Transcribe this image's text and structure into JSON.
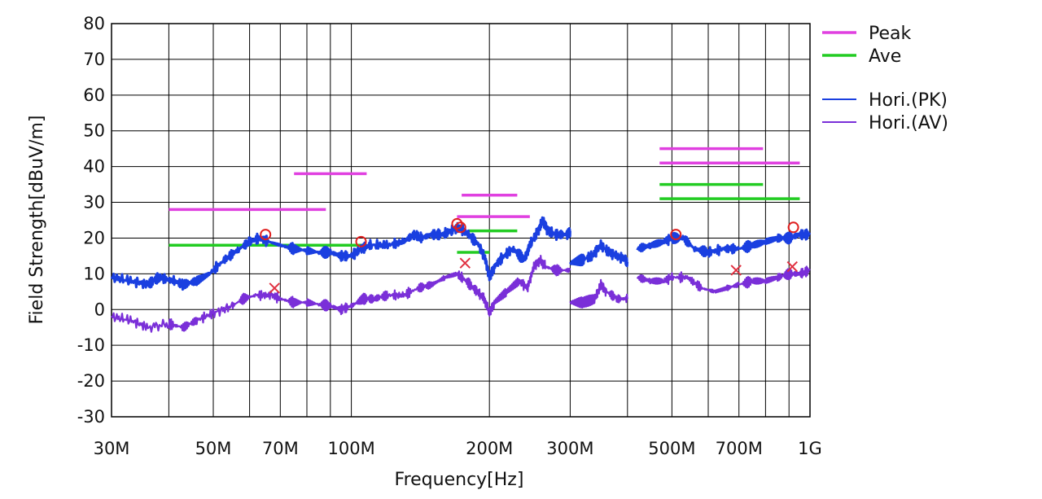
{
  "chart_data": {
    "type": "line",
    "xlabel": "Frequency[Hz]",
    "ylabel": "Field Strength[dBuV/m]",
    "x_scale": "log",
    "xlim": [
      30000000,
      1000000000
    ],
    "ylim": [
      -30,
      80
    ],
    "grid": true,
    "legend_position": "right",
    "y_ticks": [
      80,
      70,
      60,
      50,
      40,
      30,
      20,
      10,
      0,
      -10,
      -20,
      -30
    ],
    "x_ticks": [
      {
        "value": 30000000,
        "label": "30M"
      },
      {
        "value": 50000000,
        "label": "50M"
      },
      {
        "value": 70000000,
        "label": "70M"
      },
      {
        "value": 100000000,
        "label": "100M"
      },
      {
        "value": 200000000,
        "label": "200M"
      },
      {
        "value": 300000000,
        "label": "300M"
      },
      {
        "value": 500000000,
        "label": "500M"
      },
      {
        "value": 700000000,
        "label": "700M"
      },
      {
        "value": 1000000000,
        "label": "1G"
      }
    ],
    "legend": [
      {
        "label": "Peak",
        "color": "#e040e0",
        "style": "thick"
      },
      {
        "label": "Ave",
        "color": "#22cc22",
        "style": "thick"
      },
      {
        "label": "Hori.(PK)",
        "color": "#1a3fe0",
        "style": "thin"
      },
      {
        "label": "Hori.(AV)",
        "color": "#7a2fd8",
        "style": "thin"
      }
    ],
    "limit_segments": {
      "Peak": [
        {
          "x1": 40000000,
          "x2": 88000000,
          "y": 28
        },
        {
          "x1": 75000000,
          "x2": 108000000,
          "y": 38
        },
        {
          "x1": 174000000,
          "x2": 230000000,
          "y": 32
        },
        {
          "x1": 170000000,
          "x2": 245000000,
          "y": 26
        },
        {
          "x1": 470000000,
          "x2": 790000000,
          "y": 45
        },
        {
          "x1": 470000000,
          "x2": 950000000,
          "y": 41
        }
      ],
      "Ave": [
        {
          "x1": 40000000,
          "x2": 108000000,
          "y": 18
        },
        {
          "x1": 180000000,
          "x2": 230000000,
          "y": 22
        },
        {
          "x1": 170000000,
          "x2": 200000000,
          "y": 16
        },
        {
          "x1": 470000000,
          "x2": 790000000,
          "y": 35
        },
        {
          "x1": 470000000,
          "x2": 950000000,
          "y": 31
        }
      ]
    },
    "series": [
      {
        "name": "Hori.(PK)",
        "color": "#1a3fe0",
        "segments": [
          [
            [
              30000000,
              9
            ],
            [
              33000000,
              8
            ],
            [
              36000000,
              7
            ],
            [
              38000000,
              9
            ],
            [
              41000000,
              8
            ],
            [
              43000000,
              7
            ],
            [
              46000000,
              8
            ],
            [
              49000000,
              10
            ],
            [
              53000000,
              14
            ],
            [
              57000000,
              17
            ],
            [
              60000000,
              19
            ],
            [
              63000000,
              20
            ],
            [
              66000000,
              19
            ],
            [
              70000000,
              18
            ],
            [
              75000000,
              17
            ],
            [
              80000000,
              16.5
            ],
            [
              85000000,
              16
            ],
            [
              90000000,
              16
            ],
            [
              95000000,
              15
            ],
            [
              100000000,
              15
            ],
            [
              105000000,
              17
            ],
            [
              110000000,
              18
            ],
            [
              120000000,
              18
            ],
            [
              130000000,
              19
            ],
            [
              137000000,
              21
            ],
            [
              142000000,
              20
            ],
            [
              150000000,
              21
            ],
            [
              158000000,
              21
            ],
            [
              165000000,
              22
            ],
            [
              172000000,
              23
            ],
            [
              180000000,
              21
            ],
            [
              190000000,
              18
            ],
            [
              196000000,
              14
            ],
            [
              200000000,
              9
            ],
            [
              205000000,
              12
            ],
            [
              215000000,
              15
            ],
            [
              225000000,
              17
            ],
            [
              238000000,
              14
            ],
            [
              245000000,
              18
            ],
            [
              255000000,
              22
            ],
            [
              262000000,
              25
            ],
            [
              268000000,
              22
            ],
            [
              280000000,
              21
            ],
            [
              295000000,
              21
            ],
            [
              300000000,
              22
            ]
          ],
          [
            [
              300000000,
              13
            ],
            [
              320000000,
              14
            ],
            [
              335000000,
              15
            ],
            [
              350000000,
              18
            ],
            [
              365000000,
              16
            ],
            [
              380000000,
              15
            ],
            [
              395000000,
              14
            ],
            [
              400000000,
              13
            ]
          ],
          [
            [
              420000000,
              17
            ],
            [
              450000000,
              18
            ],
            [
              480000000,
              19
            ],
            [
              500000000,
              20
            ],
            [
              530000000,
              20
            ],
            [
              560000000,
              17
            ],
            [
              600000000,
              16
            ],
            [
              650000000,
              17
            ],
            [
              700000000,
              17
            ],
            [
              750000000,
              18
            ],
            [
              800000000,
              19
            ],
            [
              850000000,
              20
            ],
            [
              900000000,
              20
            ],
            [
              950000000,
              21
            ],
            [
              1000000000,
              21
            ]
          ]
        ]
      },
      {
        "name": "Hori.(AV)",
        "color": "#7a2fd8",
        "segments": [
          [
            [
              30000000,
              -2
            ],
            [
              33000000,
              -3
            ],
            [
              36000000,
              -5
            ],
            [
              40000000,
              -4
            ],
            [
              43000000,
              -5
            ],
            [
              46000000,
              -3
            ],
            [
              50000000,
              -1
            ],
            [
              55000000,
              1
            ],
            [
              58000000,
              3
            ],
            [
              62000000,
              4
            ],
            [
              67000000,
              4
            ],
            [
              70000000,
              3
            ],
            [
              75000000,
              2
            ],
            [
              80000000,
              2
            ],
            [
              85000000,
              1.5
            ],
            [
              90000000,
              1
            ],
            [
              95000000,
              0
            ],
            [
              100000000,
              1
            ],
            [
              106000000,
              3
            ],
            [
              112000000,
              3
            ],
            [
              120000000,
              4
            ],
            [
              130000000,
              4
            ],
            [
              140000000,
              6
            ],
            [
              150000000,
              7
            ],
            [
              160000000,
              9
            ],
            [
              170000000,
              10
            ],
            [
              178000000,
              8
            ],
            [
              188000000,
              5
            ],
            [
              195000000,
              3
            ],
            [
              200000000,
              -1
            ],
            [
              205000000,
              2
            ],
            [
              218000000,
              5
            ],
            [
              232000000,
              8
            ],
            [
              242000000,
              6
            ],
            [
              250000000,
              12
            ],
            [
              258000000,
              14
            ],
            [
              265000000,
              12
            ],
            [
              280000000,
              11
            ],
            [
              300000000,
              11
            ]
          ],
          [
            [
              300000000,
              2
            ],
            [
              320000000,
              2
            ],
            [
              340000000,
              3
            ],
            [
              350000000,
              7
            ],
            [
              360000000,
              5
            ],
            [
              380000000,
              3
            ],
            [
              400000000,
              3
            ]
          ],
          [
            [
              420000000,
              9
            ],
            [
              450000000,
              8
            ],
            [
              480000000,
              8
            ],
            [
              500000000,
              9
            ],
            [
              540000000,
              9
            ],
            [
              580000000,
              6
            ],
            [
              620000000,
              5
            ],
            [
              660000000,
              6
            ],
            [
              700000000,
              7
            ],
            [
              750000000,
              8
            ],
            [
              800000000,
              8
            ],
            [
              850000000,
              9
            ],
            [
              900000000,
              10
            ],
            [
              950000000,
              10
            ],
            [
              1000000000,
              11
            ]
          ]
        ]
      }
    ],
    "markers": {
      "peak_circles": [
        [
          65000000,
          21
        ],
        [
          105000000,
          19
        ],
        [
          170000000,
          24
        ],
        [
          173000000,
          23
        ],
        [
          510000000,
          21
        ],
        [
          920000000,
          23
        ]
      ],
      "avg_crosses": [
        [
          68000000,
          6
        ],
        [
          177000000,
          13
        ],
        [
          690000000,
          11
        ],
        [
          915000000,
          12
        ]
      ]
    }
  }
}
